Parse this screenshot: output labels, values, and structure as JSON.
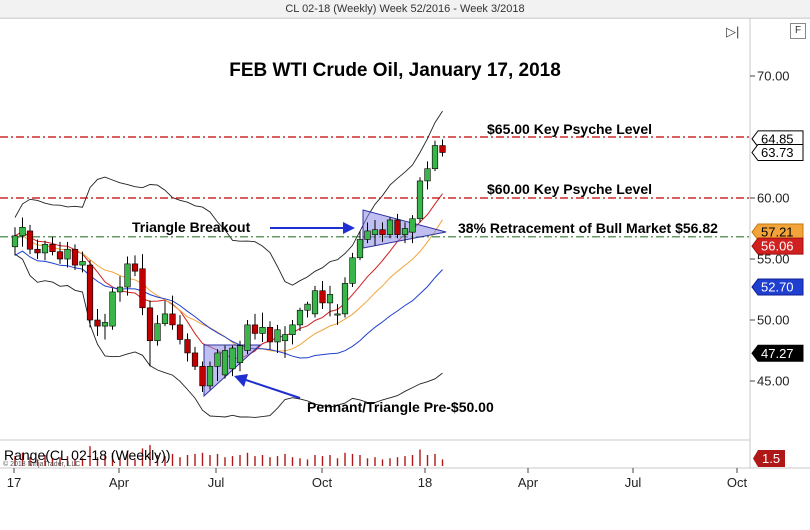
{
  "window": {
    "title": "CL 02-18 (Weekly)  Week 52/2016 - Week 3/2018",
    "format_button": "F"
  },
  "chart_data": {
    "type": "candlestick",
    "title": "FEB WTI Crude Oil, January 17, 2018",
    "y_ticks": [
      "70.00",
      "60.00",
      "55.00",
      "50.00",
      "45.00"
    ],
    "x_ticks": [
      "17",
      "Apr",
      "Jul",
      "Oct",
      "18",
      "Apr",
      "Jul",
      "Oct"
    ],
    "ylim": [
      42.5,
      73.5
    ],
    "grid": false,
    "annotations": {
      "key_65": "$65.00 Key Psyche Level",
      "key_60": "$60.00 Key Psyche Level",
      "triangle_breakout": "Triangle Breakout",
      "retracement": "38% Retracement of Bull Market $56.82",
      "pennant": "Pennant/Triangle Pre-$50.00"
    },
    "levels": [
      {
        "price": 65.0,
        "color": "#c00000",
        "style": "dash-dot"
      },
      {
        "price": 60.0,
        "color": "#c00000",
        "style": "dash-dot"
      },
      {
        "price": 56.82,
        "color": "#2e7d32",
        "style": "dash-dot"
      }
    ],
    "price_tags": [
      {
        "label": "64.85",
        "price": 64.85,
        "bg": "#ffffff",
        "fg": "#000000",
        "border": "#000000"
      },
      {
        "label": "63.73",
        "price": 63.73,
        "bg": "#ffffff",
        "fg": "#000000",
        "border": "#000000"
      },
      {
        "label": "57.21",
        "price": 57.21,
        "bg": "#f2a43a",
        "fg": "#000000",
        "border": "#c47a10"
      },
      {
        "label": "56.06",
        "price": 56.06,
        "bg": "#d02020",
        "fg": "#ffffff",
        "border": "#a01010"
      },
      {
        "label": "52.70",
        "price": 52.7,
        "bg": "#1f3fd0",
        "fg": "#ffffff",
        "border": "#10208f"
      },
      {
        "label": "47.27",
        "price": 47.27,
        "bg": "#000000",
        "fg": "#ffffff",
        "border": "#000000"
      }
    ],
    "candles": [
      {
        "o": 56.0,
        "h": 57.6,
        "l": 55.3,
        "c": 56.9
      },
      {
        "o": 56.9,
        "h": 58.4,
        "l": 56.0,
        "c": 57.6
      },
      {
        "o": 57.3,
        "h": 57.8,
        "l": 55.4,
        "c": 55.8
      },
      {
        "o": 55.8,
        "h": 56.6,
        "l": 55.0,
        "c": 55.5
      },
      {
        "o": 55.5,
        "h": 56.5,
        "l": 54.9,
        "c": 56.2
      },
      {
        "o": 56.2,
        "h": 56.8,
        "l": 55.3,
        "c": 55.6
      },
      {
        "o": 55.6,
        "h": 56.4,
        "l": 54.6,
        "c": 55.0
      },
      {
        "o": 55.0,
        "h": 56.4,
        "l": 54.3,
        "c": 55.8
      },
      {
        "o": 55.8,
        "h": 56.2,
        "l": 54.1,
        "c": 54.5
      },
      {
        "o": 54.5,
        "h": 55.6,
        "l": 53.9,
        "c": 54.8
      },
      {
        "o": 54.5,
        "h": 54.9,
        "l": 49.4,
        "c": 50.0
      },
      {
        "o": 50.0,
        "h": 50.9,
        "l": 48.7,
        "c": 49.5
      },
      {
        "o": 49.5,
        "h": 50.5,
        "l": 48.4,
        "c": 49.8
      },
      {
        "o": 49.5,
        "h": 52.6,
        "l": 49.2,
        "c": 52.3
      },
      {
        "o": 52.3,
        "h": 53.6,
        "l": 51.5,
        "c": 52.7
      },
      {
        "o": 52.7,
        "h": 55.2,
        "l": 52.0,
        "c": 54.6
      },
      {
        "o": 54.6,
        "h": 55.3,
        "l": 53.6,
        "c": 54.0
      },
      {
        "o": 54.2,
        "h": 55.4,
        "l": 50.4,
        "c": 51.0
      },
      {
        "o": 51.0,
        "h": 51.6,
        "l": 46.2,
        "c": 48.3
      },
      {
        "o": 48.3,
        "h": 50.4,
        "l": 47.9,
        "c": 49.7
      },
      {
        "o": 49.7,
        "h": 51.6,
        "l": 49.5,
        "c": 50.5
      },
      {
        "o": 50.5,
        "h": 52.0,
        "l": 49.2,
        "c": 49.6
      },
      {
        "o": 49.6,
        "h": 50.4,
        "l": 48.0,
        "c": 48.4
      },
      {
        "o": 48.4,
        "h": 48.9,
        "l": 46.6,
        "c": 47.3
      },
      {
        "o": 47.3,
        "h": 47.8,
        "l": 45.9,
        "c": 46.2
      },
      {
        "o": 46.2,
        "h": 46.6,
        "l": 44.1,
        "c": 44.6
      },
      {
        "o": 44.6,
        "h": 46.6,
        "l": 44.3,
        "c": 46.2
      },
      {
        "o": 46.2,
        "h": 47.6,
        "l": 45.0,
        "c": 47.3
      },
      {
        "o": 45.5,
        "h": 47.9,
        "l": 45.2,
        "c": 47.5
      },
      {
        "o": 46.0,
        "h": 47.9,
        "l": 45.4,
        "c": 47.7
      },
      {
        "o": 46.5,
        "h": 48.3,
        "l": 45.8,
        "c": 47.9
      },
      {
        "o": 47.5,
        "h": 50.0,
        "l": 47.2,
        "c": 49.6
      },
      {
        "o": 49.6,
        "h": 50.5,
        "l": 48.4,
        "c": 48.9
      },
      {
        "o": 48.9,
        "h": 50.6,
        "l": 48.2,
        "c": 49.4
      },
      {
        "o": 49.4,
        "h": 49.9,
        "l": 47.6,
        "c": 48.2
      },
      {
        "o": 48.2,
        "h": 49.6,
        "l": 47.3,
        "c": 49.2
      },
      {
        "o": 48.3,
        "h": 49.5,
        "l": 46.9,
        "c": 48.8
      },
      {
        "o": 48.8,
        "h": 50.0,
        "l": 48.0,
        "c": 49.6
      },
      {
        "o": 49.6,
        "h": 51.0,
        "l": 49.1,
        "c": 50.8
      },
      {
        "o": 50.8,
        "h": 51.5,
        "l": 50.2,
        "c": 51.3
      },
      {
        "o": 50.5,
        "h": 52.8,
        "l": 50.2,
        "c": 52.4
      },
      {
        "o": 52.4,
        "h": 53.2,
        "l": 50.9,
        "c": 51.4
      },
      {
        "o": 51.4,
        "h": 52.8,
        "l": 50.3,
        "c": 52.1
      },
      {
        "o": 50.4,
        "h": 51.3,
        "l": 49.6,
        "c": 50.5
      },
      {
        "o": 50.5,
        "h": 53.5,
        "l": 50.2,
        "c": 53.0
      },
      {
        "o": 53.0,
        "h": 55.5,
        "l": 52.7,
        "c": 55.1
      },
      {
        "o": 55.1,
        "h": 57.3,
        "l": 54.9,
        "c": 56.6
      },
      {
        "o": 56.6,
        "h": 58.0,
        "l": 56.3,
        "c": 57.3
      },
      {
        "o": 57.0,
        "h": 58.2,
        "l": 56.1,
        "c": 57.4
      },
      {
        "o": 57.4,
        "h": 58.0,
        "l": 56.4,
        "c": 57.0
      },
      {
        "o": 57.0,
        "h": 58.4,
        "l": 56.7,
        "c": 58.2
      },
      {
        "o": 58.2,
        "h": 58.7,
        "l": 56.7,
        "c": 57.0
      },
      {
        "o": 57.0,
        "h": 58.0,
        "l": 56.3,
        "c": 57.5
      },
      {
        "o": 57.2,
        "h": 58.6,
        "l": 56.3,
        "c": 58.3
      },
      {
        "o": 58.3,
        "h": 61.7,
        "l": 58.0,
        "c": 61.4
      },
      {
        "o": 61.4,
        "h": 63.0,
        "l": 60.7,
        "c": 62.4
      },
      {
        "o": 62.4,
        "h": 64.7,
        "l": 62.2,
        "c": 64.3
      },
      {
        "o": 64.3,
        "h": 64.8,
        "l": 63.4,
        "c": 63.73
      }
    ],
    "indicator": {
      "label": "Range(CL 02-18 (Weekly))",
      "last_value": "1.5",
      "copyright": "© 2018 NinjaTrader, LLC",
      "bar_heights": [
        0.45,
        0.6,
        0.4,
        0.3,
        0.5,
        0.35,
        0.4,
        0.45,
        0.3,
        0.35,
        0.9,
        0.4,
        0.5,
        0.6,
        0.4,
        0.7,
        0.3,
        0.8,
        0.95,
        0.5,
        0.45,
        0.55,
        0.4,
        0.5,
        0.55,
        0.6,
        0.5,
        0.55,
        0.4,
        0.45,
        0.5,
        0.6,
        0.45,
        0.5,
        0.4,
        0.45,
        0.55,
        0.4,
        0.35,
        0.3,
        0.5,
        0.45,
        0.5,
        0.35,
        0.6,
        0.55,
        0.5,
        0.35,
        0.4,
        0.3,
        0.35,
        0.4,
        0.45,
        0.5,
        0.75,
        0.5,
        0.55,
        0.3
      ]
    },
    "colors": {
      "up": "#3ab54a",
      "down": "#c00000",
      "wick": "#000000"
    }
  }
}
